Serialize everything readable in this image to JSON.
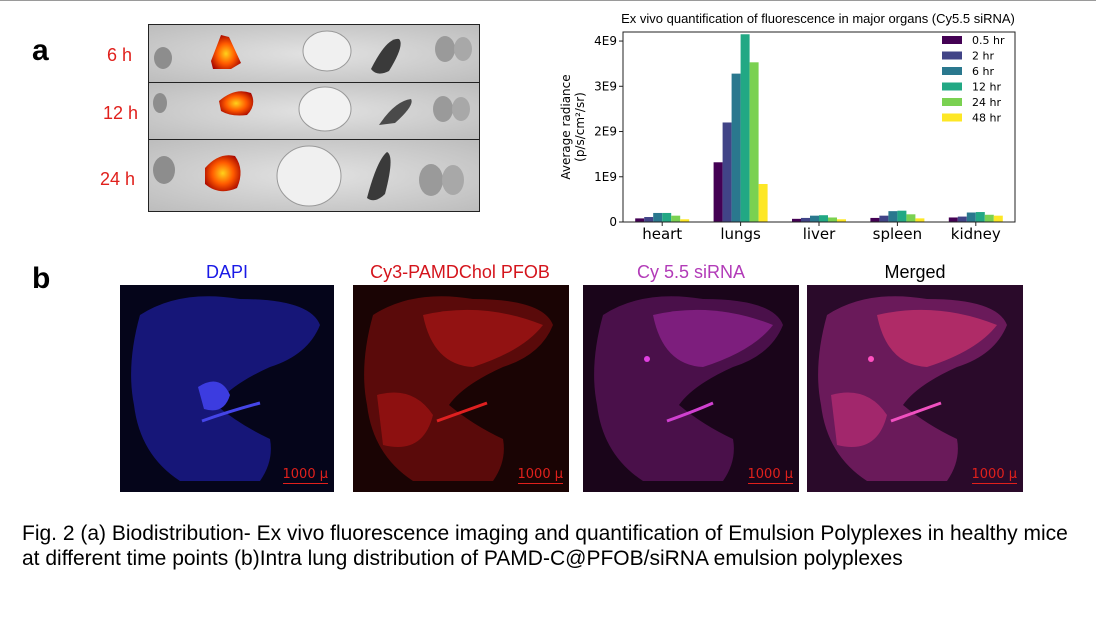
{
  "panel_a": {
    "letter": "a",
    "time_labels": [
      "6 h",
      "12 h",
      "24 h"
    ]
  },
  "panel_b": {
    "letter": "b",
    "titles": [
      {
        "text": "DAPI",
        "color": "#1a1ae6"
      },
      {
        "text": "Cy3-PAMDChol PFOB",
        "color": "#d4141c"
      },
      {
        "text": "Cy 5.5 siRNA",
        "color": "#b23bb8"
      },
      {
        "text": "Merged",
        "color": "#000000"
      }
    ],
    "scale_label": "1000 µ"
  },
  "chart_data": {
    "type": "bar",
    "title": "Ex vivo quantification of fluorescence in major organs (Cy5.5 siRNA)",
    "ylabel_line1": "Average radiance",
    "ylabel_line2": "(p/s/cm²/sr)",
    "xlabel": "",
    "ylim": [
      0,
      4200000000.0
    ],
    "yticks": [
      0,
      1000000000.0,
      2000000000.0,
      3000000000.0,
      4000000000.0
    ],
    "ytick_labels": [
      "0",
      "1E9",
      "2E9",
      "3E9",
      "4E9"
    ],
    "categories": [
      "heart",
      "lungs",
      "liver",
      "spleen",
      "kidney"
    ],
    "legend_position": "top-right",
    "series": [
      {
        "name": "0.5 hr",
        "color": "#440154",
        "values": [
          80000000.0,
          1320000000.0,
          70000000.0,
          90000000.0,
          100000000.0
        ]
      },
      {
        "name": "2 hr",
        "color": "#414487",
        "values": [
          110000000.0,
          2200000000.0,
          90000000.0,
          140000000.0,
          120000000.0
        ]
      },
      {
        "name": "6 hr",
        "color": "#2a788e",
        "values": [
          200000000.0,
          3280000000.0,
          140000000.0,
          240000000.0,
          210000000.0
        ]
      },
      {
        "name": "12 hr",
        "color": "#22a884",
        "values": [
          200000000.0,
          4150000000.0,
          150000000.0,
          250000000.0,
          220000000.0
        ]
      },
      {
        "name": "24 hr",
        "color": "#7ad151",
        "values": [
          140000000.0,
          3530000000.0,
          100000000.0,
          170000000.0,
          160000000.0
        ]
      },
      {
        "name": "48 hr",
        "color": "#fde725",
        "values": [
          60000000.0,
          840000000.0,
          60000000.0,
          80000000.0,
          140000000.0
        ]
      }
    ]
  },
  "caption": "Fig. 2 (a) Biodistribution- Ex vivo fluorescence imaging and quantification of Emulsion Polyplexes in healthy mice at different time points (b)Intra lung distribution of PAMD-C@PFOB/siRNA emulsion polyplexes"
}
